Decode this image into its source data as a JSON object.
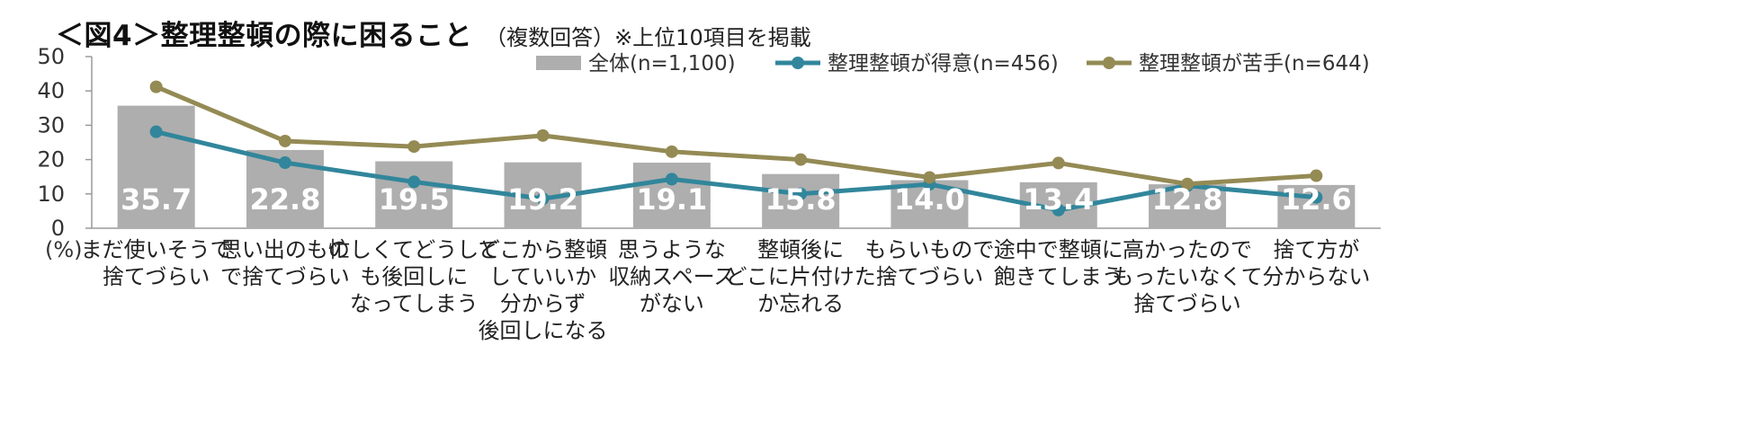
{
  "title": "＜図4＞整理整頓の際に困ること",
  "subtitle": "（複数回答）※上位10項目を掲載",
  "colors": {
    "bar": "#AEAEAE",
    "good": "#31869B",
    "bad": "#948A54"
  },
  "chart_data": {
    "type": "bar",
    "unit_label": "(%)",
    "ylim": [
      0,
      50
    ],
    "yticks": [
      0,
      10,
      20,
      30,
      40,
      50
    ],
    "grid": false,
    "legend_position": "top",
    "categories": [
      [
        "まだ使いそうで",
        "捨てづらい"
      ],
      [
        "思い出のもの",
        "で捨てづらい"
      ],
      [
        "忙しくてどうして",
        "も後回しに",
        "なってしまう"
      ],
      [
        "どこから整頓",
        "していいか",
        "分からず",
        "後回しになる"
      ],
      [
        "思うような",
        "収納スペース",
        "がない"
      ],
      [
        "整頓後に",
        "どこに片付けた",
        "か忘れる"
      ],
      [
        "もらいもので",
        "捨てづらい"
      ],
      [
        "途中で整頓に",
        "飽きてしまう"
      ],
      [
        "高かったので",
        "もったいなくて",
        "捨てづらい"
      ],
      [
        "捨て方が",
        "分からない"
      ]
    ],
    "series": [
      {
        "name": "全体(n=1,100)",
        "type": "bar",
        "color": "#AEAEAE",
        "values": [
          35.7,
          22.8,
          19.5,
          19.2,
          19.1,
          15.8,
          14.0,
          13.4,
          12.8,
          12.6
        ]
      },
      {
        "name": "整理整頓が得意(n=456)",
        "type": "line",
        "color": "#31869B",
        "values": [
          28.1,
          19.1,
          13.5,
          8.6,
          14.3,
          10.0,
          12.8,
          5.3,
          12.4,
          9.0
        ]
      },
      {
        "name": "整理整頓が苦手(n=644)",
        "type": "line",
        "color": "#948A54",
        "values": [
          41.2,
          25.4,
          23.8,
          27.0,
          22.3,
          20.0,
          14.8,
          19.0,
          12.9,
          15.3
        ]
      }
    ]
  }
}
